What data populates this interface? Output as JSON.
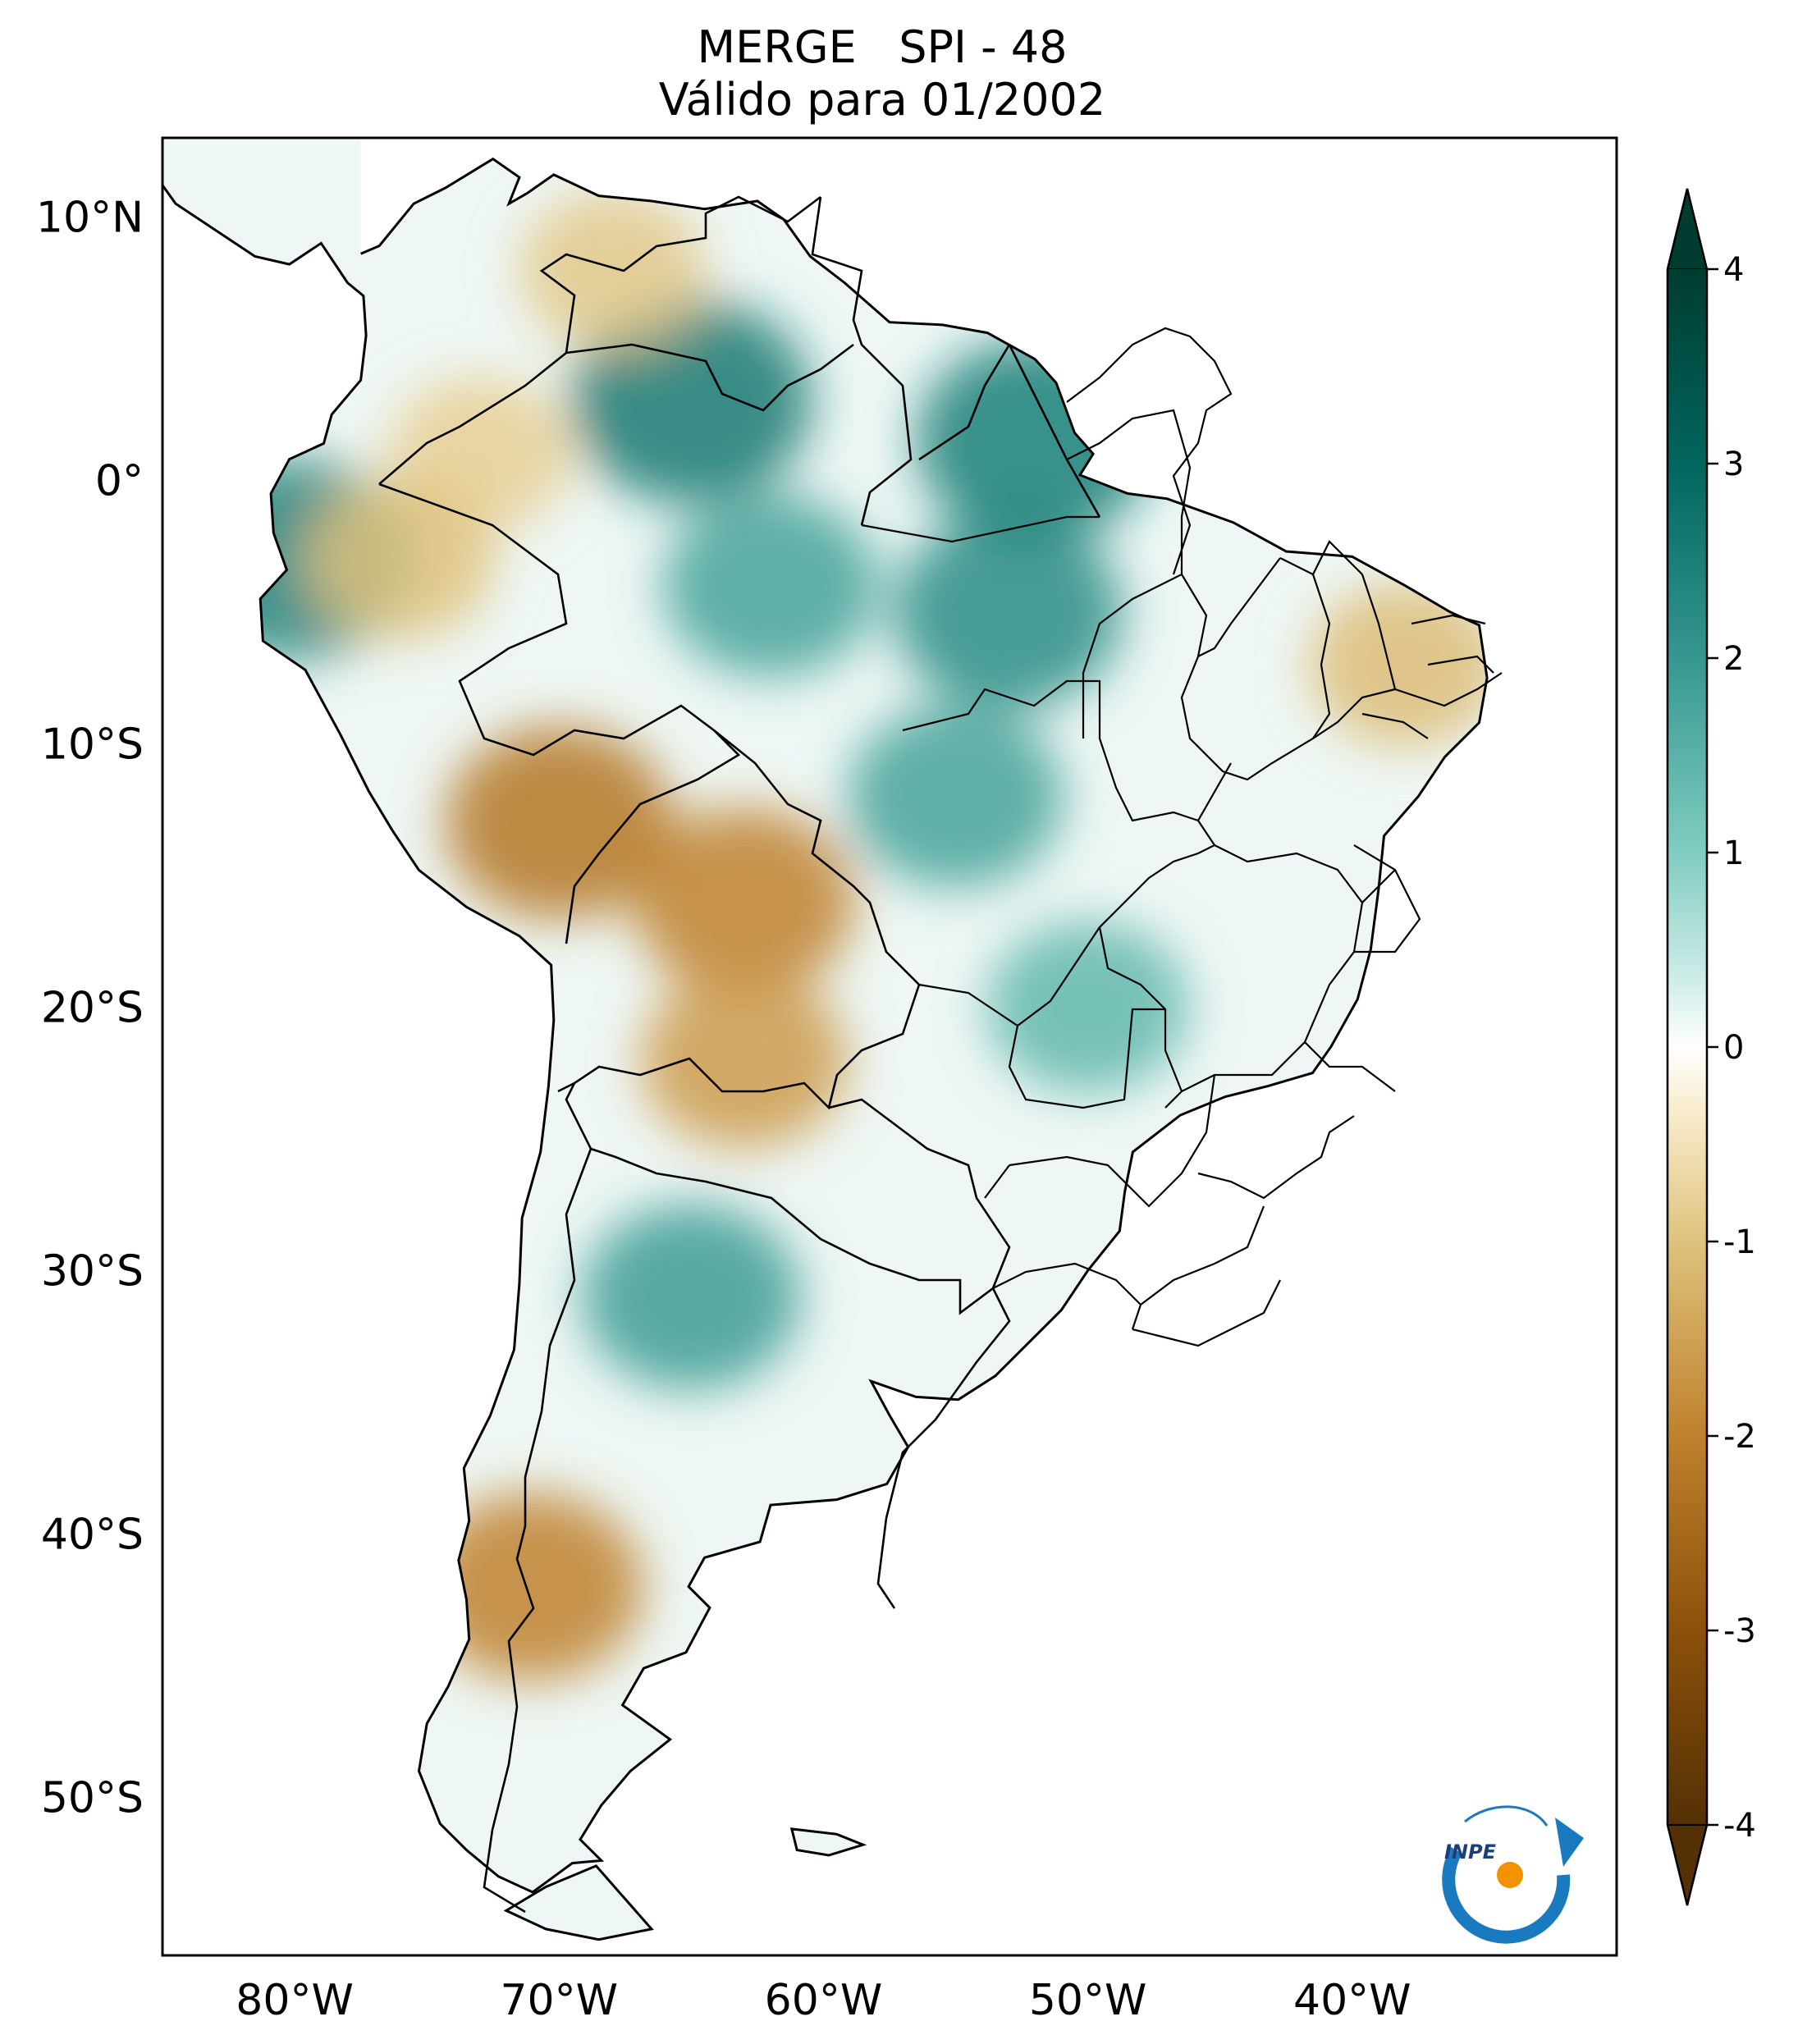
{
  "title": {
    "line1": "MERGE   SPI - 48",
    "line2": "Válido para 01/2002"
  },
  "map": {
    "region": "South America",
    "lon_range": [
      -85,
      -30
    ],
    "lat_range": [
      -56,
      13
    ],
    "lat_ticks": [
      {
        "value": 10,
        "label": "10°N"
      },
      {
        "value": 0,
        "label": "0°"
      },
      {
        "value": -10,
        "label": "10°S"
      },
      {
        "value": -20,
        "label": "20°S"
      },
      {
        "value": -30,
        "label": "30°S"
      },
      {
        "value": -40,
        "label": "40°S"
      },
      {
        "value": -50,
        "label": "50°S"
      }
    ],
    "lon_ticks": [
      {
        "value": -80,
        "label": "80°W"
      },
      {
        "value": -70,
        "label": "70°W"
      },
      {
        "value": -60,
        "label": "60°W"
      },
      {
        "value": -50,
        "label": "50°W"
      },
      {
        "value": -40,
        "label": "40°W"
      }
    ],
    "spi_areas": [
      {
        "name": "guiana-shield-wet",
        "lon": -65,
        "lat": 3,
        "spi": 2.6
      },
      {
        "name": "amazonas-wet",
        "lon": -62,
        "lat": -4,
        "spi": 1.8
      },
      {
        "name": "para-wet",
        "lon": -53,
        "lat": -5,
        "spi": 2.2
      },
      {
        "name": "amapa-wet",
        "lon": -52,
        "lat": 1.5,
        "spi": 2.5
      },
      {
        "name": "mato-grosso-wet",
        "lon": -55,
        "lat": -12,
        "spi": 1.8
      },
      {
        "name": "ecuador-coast-wet",
        "lon": -80,
        "lat": -3,
        "spi": 2.4
      },
      {
        "name": "venezuela-dry",
        "lon": -68,
        "lat": 8,
        "spi": -0.9
      },
      {
        "name": "colombia-dry",
        "lon": -73,
        "lat": 1,
        "spi": -0.8
      },
      {
        "name": "peru-north-dry",
        "lon": -76,
        "lat": -3,
        "spi": -1.0
      },
      {
        "name": "southern-peru-dry",
        "lon": -70,
        "lat": -13,
        "spi": -2.2
      },
      {
        "name": "bolivia-dry",
        "lon": -63,
        "lat": -16,
        "spi": -2.0
      },
      {
        "name": "chaco-dry",
        "lon": -63,
        "lat": -22,
        "spi": -1.6
      },
      {
        "name": "argentina-central-wet",
        "lon": -65,
        "lat": -31,
        "spi": 1.9
      },
      {
        "name": "patagonia-dry",
        "lon": -71,
        "lat": -42,
        "spi": -2.0
      },
      {
        "name": "northeast-brazil-dry",
        "lon": -38,
        "lat": -7,
        "spi": -1.1
      },
      {
        "name": "southeast-brazil-wet",
        "lon": -50,
        "lat": -20,
        "spi": 1.4
      }
    ]
  },
  "colorbar": {
    "ticks": [
      {
        "value": 4,
        "label": "4"
      },
      {
        "value": 3,
        "label": "3"
      },
      {
        "value": 2,
        "label": "2"
      },
      {
        "value": 1,
        "label": "1"
      },
      {
        "value": 0,
        "label": "0"
      },
      {
        "value": -1,
        "label": "-1"
      },
      {
        "value": -2,
        "label": "-2"
      },
      {
        "value": -3,
        "label": "-3"
      },
      {
        "value": -4,
        "label": "-4"
      }
    ],
    "extend": "both",
    "colormap": "BrBG"
  },
  "logo": {
    "text": "INPE"
  }
}
